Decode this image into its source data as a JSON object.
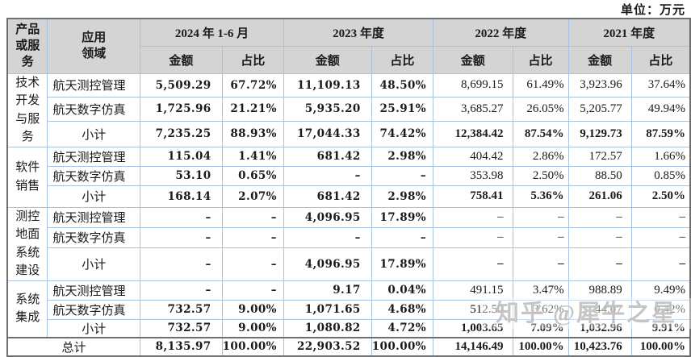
{
  "unit_label": "单位：万元",
  "watermark": "知乎 @犀牛之星",
  "colors": {
    "header_bg": "#d4d4d4",
    "grid_line": "#a6c3e1",
    "outer_border": "#6f6f6f",
    "text": "#1a1a1a",
    "watermark": "#969696"
  },
  "table": {
    "header": {
      "product_service": "产品或服务",
      "application_field": "应用领域",
      "amount": "金额",
      "ratio": "占比",
      "periods": [
        {
          "label": "2024 年 1-6 月"
        },
        {
          "label": "2023 年度"
        },
        {
          "label": "2022 年度"
        },
        {
          "label": "2021 年度"
        }
      ]
    },
    "groups": [
      {
        "product": "技术开发与服务",
        "rows": [
          {
            "field": "航天测控管理",
            "subtotal": false,
            "values": [
              "5,509.29",
              "67.72%",
              "11,109.13",
              "48.50%",
              "8,699.15",
              "61.49%",
              "3,923.96",
              "37.64%"
            ]
          },
          {
            "field": "航天数字仿真",
            "subtotal": false,
            "values": [
              "1,725.96",
              "21.21%",
              "5,935.20",
              "25.91%",
              "3,685.27",
              "26.05%",
              "5,205.77",
              "49.94%"
            ]
          },
          {
            "field": "小计",
            "subtotal": true,
            "values": [
              "7,235.25",
              "88.93%",
              "17,044.33",
              "74.42%",
              "12,384.42",
              "87.54%",
              "9,129.73",
              "87.59%"
            ]
          }
        ]
      },
      {
        "product": "软件销售",
        "rows": [
          {
            "field": "航天测控管理",
            "subtotal": false,
            "values": [
              "115.04",
              "1.41%",
              "681.42",
              "2.98%",
              "404.42",
              "2.86%",
              "172.57",
              "1.66%"
            ]
          },
          {
            "field": "航天数字仿真",
            "subtotal": false,
            "values": [
              "53.10",
              "0.65%",
              "–",
              "–",
              "353.98",
              "2.50%",
              "88.50",
              "0.85%"
            ]
          },
          {
            "field": "小计",
            "subtotal": true,
            "values": [
              "168.14",
              "2.07%",
              "681.42",
              "2.98%",
              "758.41",
              "5.36%",
              "261.06",
              "2.50%"
            ]
          }
        ]
      },
      {
        "product": "测控地面系统建设",
        "rows": [
          {
            "field": "航天测控管理",
            "subtotal": false,
            "values": [
              "–",
              "–",
              "4,096.95",
              "17.89%",
              "–",
              "–",
              "–",
              "–"
            ]
          },
          {
            "field": "航天数字仿真",
            "subtotal": false,
            "values": [
              "–",
              "–",
              "–",
              "–",
              "–",
              "–",
              "–",
              "–"
            ]
          },
          {
            "field": "小计",
            "subtotal": true,
            "values": [
              "–",
              "–",
              "4,096.95",
              "17.89%",
              "–",
              "–",
              "–",
              "–"
            ]
          }
        ]
      },
      {
        "product": "系统集成",
        "rows": [
          {
            "field": "航天测控管理",
            "subtotal": false,
            "values": [
              "–",
              "–",
              "9.17",
              "0.04%",
              "491.15",
              "3.47%",
              "988.89",
              "9.49%"
            ]
          },
          {
            "field": "航天数字仿真",
            "subtotal": false,
            "values": [
              "732.57",
              "9.00%",
              "1,071.65",
              "4.68%",
              "512.50",
              "3.62%",
              "44.07",
              "0.42%"
            ]
          },
          {
            "field": "小计",
            "subtotal": true,
            "values": [
              "732.57",
              "9.00%",
              "1,080.82",
              "4.72%",
              "1,003.65",
              "7.09%",
              "1,032.96",
              "9.91%"
            ]
          }
        ]
      }
    ],
    "total": {
      "label": "总计",
      "values": [
        "8,135.97",
        "100.00%",
        "22,903.52",
        "100.00%",
        "14,146.49",
        "100.00%",
        "10,423.76",
        "100.00%"
      ]
    }
  }
}
